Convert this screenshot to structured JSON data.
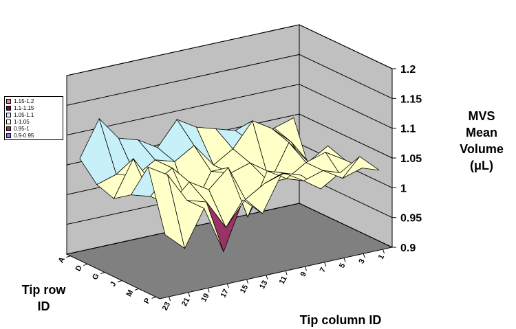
{
  "chart_data": {
    "type": "surface",
    "title": "",
    "zlabel": "MVS Mean Volume (μL)",
    "zlabel_lines": [
      "MVS",
      "Mean",
      "Volume",
      "(μL)"
    ],
    "row_axis_label": "Tip row ID",
    "row_axis_lines": [
      "Tip row",
      "ID"
    ],
    "column_axis_label": "Tip column ID",
    "zlim": [
      0.9,
      1.2
    ],
    "z_ticks": [
      "0.9",
      "0.95",
      "1",
      "1.05",
      "1.1",
      "1.15",
      "1.2"
    ],
    "row_ticks": [
      "A",
      "D",
      "G",
      "J",
      "M",
      "P"
    ],
    "column_ticks": [
      "1",
      "3",
      "5",
      "7",
      "9",
      "11",
      "13",
      "15",
      "17",
      "19",
      "21",
      "23"
    ],
    "legend_position": "left",
    "bands": [
      {
        "label": "1.15-1.2",
        "color": "#ff8080"
      },
      {
        "label": "1.1-1.15",
        "color": "#800040"
      },
      {
        "label": "1.05-1.1",
        "color": "#c8f0f8"
      },
      {
        "label": "1-1.05",
        "color": "#ffffc8"
      },
      {
        "label": "0.95-1",
        "color": "#993366"
      },
      {
        "label": "0.9-0.95",
        "color": "#8080ff"
      }
    ],
    "rows": [
      "A",
      "D",
      "G",
      "J",
      "M",
      "P"
    ],
    "columns": [
      "1",
      "3",
      "5",
      "7",
      "9",
      "11",
      "13",
      "15",
      "17",
      "19",
      "21",
      "23"
    ],
    "series": [
      {
        "name": "A",
        "values": [
          1.05,
          1.04,
          1.02,
          1.05,
          1.06,
          1.07,
          1.09,
          1.05,
          1.07,
          1.08,
          1.12,
          1.06
        ]
      },
      {
        "name": "D",
        "values": [
          0.97,
          1.03,
          1.06,
          1.08,
          1.04,
          1.02,
          1.06,
          1.04,
          1.05,
          1.03,
          1.04,
          1.03
        ]
      },
      {
        "name": "G",
        "values": [
          1.03,
          1.01,
          1.05,
          0.99,
          1.03,
          1.02,
          1.03,
          0.97,
          1.05,
          1.03,
          1.08,
          1.02
        ]
      },
      {
        "name": "J",
        "values": [
          1.02,
          1.04,
          1.03,
          1.01,
          1.03,
          0.96,
          1.05,
          1.02,
          1.04,
          1.01,
          1.03,
          1.04
        ]
      },
      {
        "name": "M",
        "values": [
          1.02,
          1.01,
          1.03,
          1.02,
          1.04,
          1.03,
          1.01,
          0.97,
          1.02,
          1.03,
          1.08,
          1.1
        ]
      },
      {
        "name": "P",
        "values": [
          1.03,
          1.06,
          1.04,
          1.02,
          1.05,
          1.06,
          1.0,
          1.03,
          0.95,
          1.03,
          0.97,
          1.0
        ]
      }
    ]
  }
}
